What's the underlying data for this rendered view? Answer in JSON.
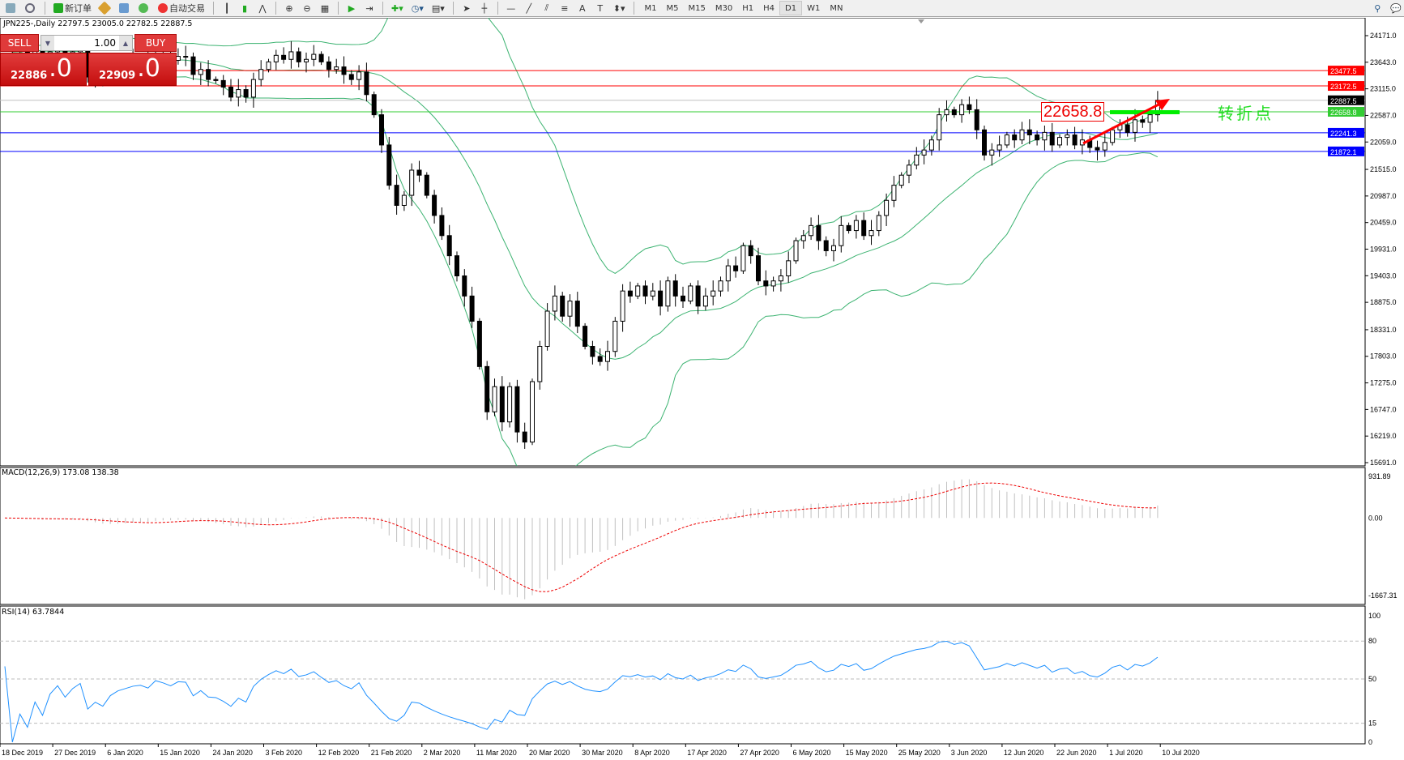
{
  "toolbar": {
    "new_order": "新订单",
    "auto_trading": "自动交易",
    "timeframes": [
      "M1",
      "M5",
      "M15",
      "M30",
      "H1",
      "H4",
      "D1",
      "W1",
      "MN"
    ],
    "active_timeframe": "D1"
  },
  "chart": {
    "header": "JPN225-,Daily  22797.5 23005.0 22782.5 22887.5",
    "symbol": "JPN225-",
    "period": "Daily",
    "price_ticks": [
      "24171.0",
      "23643.0",
      "23115.0",
      "22587.0",
      "22059.0",
      "21515.0",
      "20987.0",
      "20459.0",
      "19931.0",
      "19403.0",
      "18875.0",
      "18331.0",
      "17803.0",
      "17275.0",
      "16747.0",
      "16219.0",
      "15691.0"
    ],
    "price_range": [
      15691.0,
      24171.0
    ],
    "dates": [
      "18 Dec 2019",
      "27 Dec 2019",
      "6 Jan 2020",
      "15 Jan 2020",
      "24 Jan 2020",
      "3 Feb 2020",
      "12 Feb 2020",
      "21 Feb 2020",
      "2 Mar 2020",
      "11 Mar 2020",
      "20 Mar 2020",
      "30 Mar 2020",
      "8 Apr 2020",
      "17 Apr 2020",
      "27 Apr 2020",
      "6 May 2020",
      "15 May 2020",
      "25 May 2020",
      "3 Jun 2020",
      "12 Jun 2020",
      "22 Jun 2020",
      "1 Jul 2020",
      "10 Jul 2020"
    ],
    "closes": [
      23950,
      23880,
      23900,
      23820,
      23870,
      23760,
      23850,
      23900,
      23780,
      23850,
      23900,
      23350,
      23450,
      23300,
      23500,
      23600,
      23650,
      23700,
      23720,
      23650,
      23800,
      23750,
      23680,
      23760,
      23750,
      23400,
      23500,
      23300,
      23280,
      23150,
      22950,
      23100,
      22950,
      23300,
      23500,
      23650,
      23780,
      23700,
      23850,
      23650,
      23700,
      23800,
      23650,
      23500,
      23550,
      23400,
      23300,
      23450,
      23000,
      22600,
      22000,
      21200,
      20800,
      21000,
      21500,
      21400,
      21000,
      20600,
      20200,
      19800,
      19400,
      19000,
      18500,
      17600,
      16700,
      17200,
      16500,
      17200,
      16300,
      16100,
      17300,
      18000,
      18700,
      19000,
      18600,
      18900,
      18400,
      18000,
      17800,
      17700,
      17900,
      18500,
      19100,
      19000,
      19200,
      19000,
      19100,
      18800,
      19300,
      19000,
      18900,
      19200,
      18800,
      19000,
      19100,
      19300,
      19600,
      19500,
      20000,
      19800,
      19300,
      19200,
      19300,
      19400,
      19700,
      20100,
      20200,
      20400,
      20100,
      19900,
      20000,
      20400,
      20300,
      20500,
      20200,
      20300,
      20600,
      20900,
      21200,
      21400,
      21600,
      21800,
      21900,
      22100,
      22600,
      22700,
      22600,
      22800,
      22700,
      22300,
      21800,
      21900,
      22000,
      22200,
      22100,
      22300,
      22200,
      22100,
      22250,
      22000,
      22150,
      22200,
      22000,
      22100,
      21950,
      21900,
      22050,
      22300,
      22400,
      22250,
      22500,
      22450,
      22600,
      22887.5
    ],
    "hlines": [
      {
        "price": "23477.5",
        "color": "#ff0000"
      },
      {
        "price": "23172.5",
        "color": "#ff0000"
      },
      {
        "price": "22887.5",
        "color": "#000000",
        "line": "#c0c0c0"
      },
      {
        "price": "22658.8",
        "color": "#33cc33"
      },
      {
        "price": "22241.3",
        "color": "#0000ff"
      },
      {
        "price": "21872.1",
        "color": "#0000ff"
      }
    ],
    "annotation_price": "22658.8",
    "annotation_text": "转折点",
    "colors": {
      "bands": "#3cb371",
      "trend_arrow": "#ff0000",
      "marker_bar": "#00ee00"
    }
  },
  "trade_panel": {
    "sell_label": "SELL",
    "buy_label": "BUY",
    "lot": "1.00",
    "sell_main": "22886",
    "sell_frac": ".0",
    "buy_main": "22909",
    "buy_frac": ".0"
  },
  "macd": {
    "label": "MACD(12,26,9) 173.08 138.38",
    "ticks": [
      "931.89",
      "0.00",
      "-1667.31"
    ],
    "range": [
      -1667.31,
      931.89
    ]
  },
  "rsi": {
    "label": "RSI(14) 63.7844",
    "ticks": [
      "100",
      "80",
      "50",
      "15",
      "0"
    ],
    "levels": [
      80,
      50,
      15
    ]
  }
}
